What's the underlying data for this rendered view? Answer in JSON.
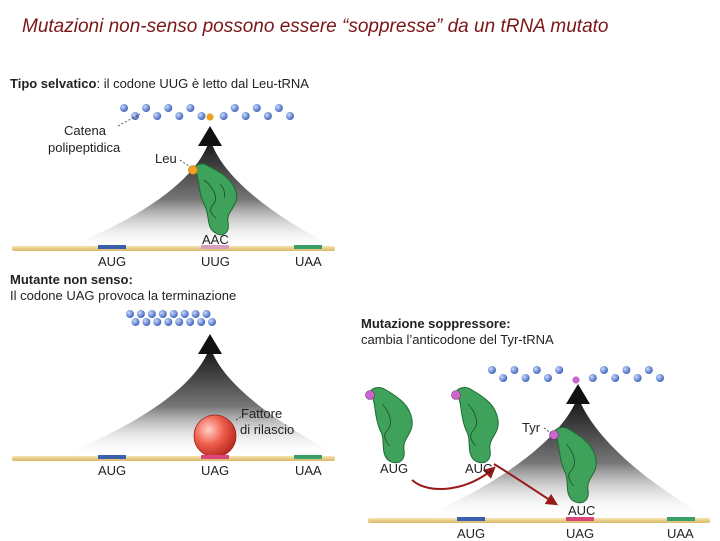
{
  "title": "Mutazioni non-senso possono essere “soppresse” da un tRNA mutato",
  "wild_type": {
    "heading_bold": "Tipo selvatico",
    "heading_rest": ": il codone UUG è letto dal Leu-tRNA",
    "chain_label_line1": "Catena",
    "chain_label_line2": "polipeptidica",
    "amino_acid": "Leu",
    "anticodon": "AAC",
    "codons": [
      "AUG",
      "UUG",
      "UAA"
    ]
  },
  "nonsense": {
    "heading_line1": "Mutante non senso:",
    "heading_line2": "Il codone UAG provoca la terminazione",
    "factor_line1": "Fattore",
    "factor_line2": "di rilascio",
    "codons": [
      "AUG",
      "UAG",
      "UAA"
    ]
  },
  "suppressor": {
    "heading_line1": "Mutazione soppressore:",
    "heading_line2": "cambia l’anticodone del Tyr-tRNA",
    "anticodon_before": "AUG",
    "anticodon_after": "AUC",
    "amino_acid": "Tyr",
    "anticodon_bound": "AUC",
    "codons": [
      "AUG",
      "UAG",
      "UAA"
    ]
  },
  "colors": {
    "title": "#7a1616",
    "mrna": "#e8cf8a",
    "start_codon": "#3a5fb0",
    "mutant_codon": "#d9477a",
    "stop_codon": "#3aa06a",
    "trna": "#3fa25a",
    "chain_bead": "#5a7fd0",
    "leu": "#f0a020",
    "tyr": "#cc66cc",
    "release_factor": "#e8403a",
    "arrow": "#9a1a1a"
  }
}
